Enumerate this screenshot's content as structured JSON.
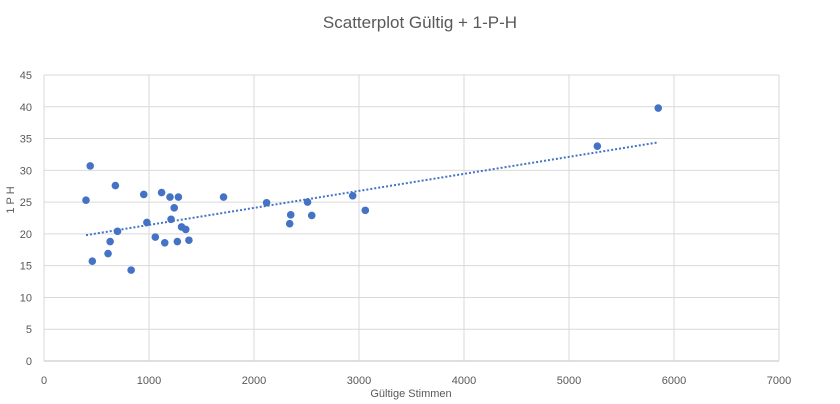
{
  "chart_data": {
    "type": "scatter",
    "title": "Scatterplot Gültig + 1-P-H",
    "xlabel": "Gültige Stimmen",
    "ylabel": "1 P H",
    "xlim": [
      0,
      7000
    ],
    "ylim": [
      0,
      45
    ],
    "x_ticks": [
      0,
      1000,
      2000,
      3000,
      4000,
      5000,
      6000,
      7000
    ],
    "y_ticks": [
      0,
      5,
      10,
      15,
      20,
      25,
      30,
      35,
      40,
      45
    ],
    "grid": true,
    "legend": "none",
    "marker_color": "#4472C4",
    "trendline": {
      "type": "linear",
      "style": "dotted",
      "x": [
        400,
        5850
      ],
      "y": [
        19.8,
        34.4
      ]
    },
    "points": [
      {
        "x": 400,
        "y": 25.3
      },
      {
        "x": 440,
        "y": 30.7
      },
      {
        "x": 460,
        "y": 15.7
      },
      {
        "x": 610,
        "y": 16.9
      },
      {
        "x": 630,
        "y": 18.8
      },
      {
        "x": 680,
        "y": 27.6
      },
      {
        "x": 700,
        "y": 20.4
      },
      {
        "x": 830,
        "y": 14.3
      },
      {
        "x": 950,
        "y": 26.2
      },
      {
        "x": 980,
        "y": 21.8
      },
      {
        "x": 1060,
        "y": 19.5
      },
      {
        "x": 1120,
        "y": 26.5
      },
      {
        "x": 1150,
        "y": 18.6
      },
      {
        "x": 1200,
        "y": 25.8
      },
      {
        "x": 1210,
        "y": 22.3
      },
      {
        "x": 1240,
        "y": 24.1
      },
      {
        "x": 1270,
        "y": 18.8
      },
      {
        "x": 1280,
        "y": 25.8
      },
      {
        "x": 1310,
        "y": 21.1
      },
      {
        "x": 1350,
        "y": 20.7
      },
      {
        "x": 1380,
        "y": 19.0
      },
      {
        "x": 1710,
        "y": 25.8
      },
      {
        "x": 2120,
        "y": 24.9
      },
      {
        "x": 2340,
        "y": 21.6
      },
      {
        "x": 2350,
        "y": 23.0
      },
      {
        "x": 2510,
        "y": 25.0
      },
      {
        "x": 2550,
        "y": 22.9
      },
      {
        "x": 2940,
        "y": 26.0
      },
      {
        "x": 3060,
        "y": 23.7
      },
      {
        "x": 5270,
        "y": 33.8
      },
      {
        "x": 5850,
        "y": 39.8
      }
    ]
  }
}
